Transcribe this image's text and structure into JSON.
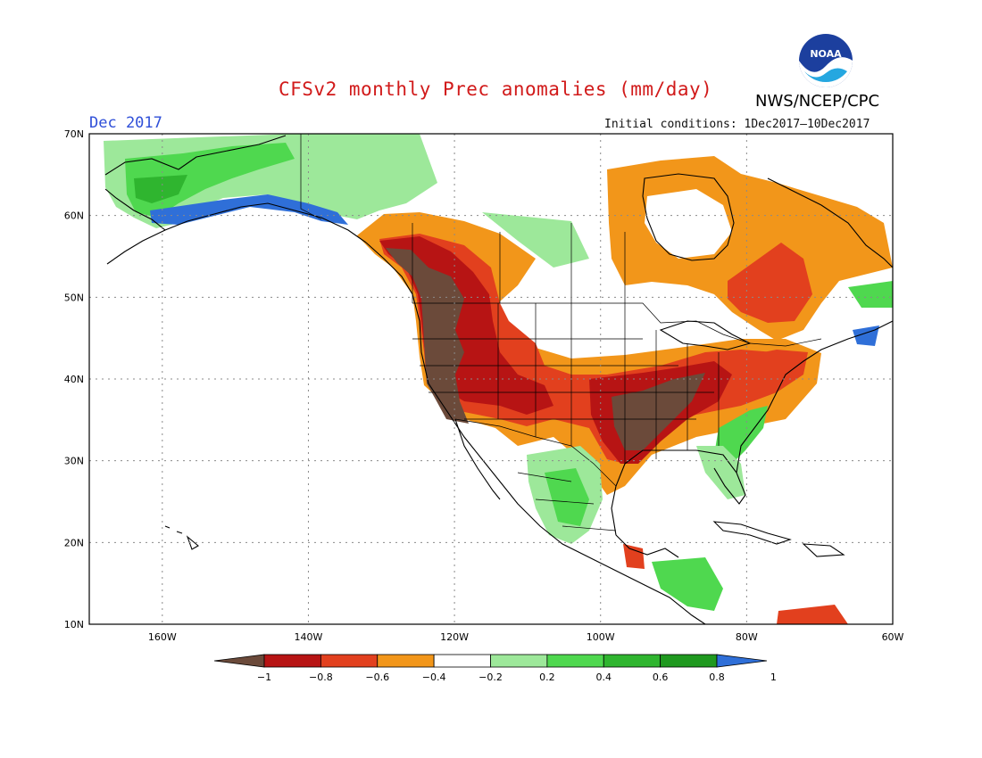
{
  "header": {
    "title": "CFSv2 monthly Prec anomalies (mm/day)",
    "agency": "NWS/NCEP/CPC",
    "month": "Dec 2017",
    "initial_conditions": "Initial conditions: 1Dec2017–10Dec2017",
    "logo_text": "NOAA"
  },
  "map": {
    "lat_labels": [
      "70N",
      "60N",
      "50N",
      "40N",
      "30N",
      "20N",
      "10N"
    ],
    "lon_labels": [
      "160W",
      "140W",
      "120W",
      "100W",
      "80W",
      "60W"
    ],
    "extent": {
      "lon": [
        -170,
        -60
      ],
      "lat": [
        10,
        70
      ]
    }
  },
  "colorbar": {
    "labels": [
      "−1",
      "−0.8",
      "−0.6",
      "−0.4",
      "−0.2",
      "0.2",
      "0.4",
      "0.6",
      "0.8",
      "1"
    ],
    "colors": [
      "#6b4a3a",
      "#b71414",
      "#e2401e",
      "#f2961a",
      "#ffffff",
      "#9de89a",
      "#4fd84f",
      "#2fb52f",
      "#1f991f",
      "#2f6fd8"
    ]
  },
  "palette": {
    "lt_minus1": "#6b4a3a",
    "m08": "#b71414",
    "m06": "#e2401e",
    "m04": "#f2961a",
    "p02": "#9de89a",
    "p04": "#4fd84f",
    "p06": "#2fb52f",
    "p08": "#1f991f",
    "gt1": "#2f6fd8"
  }
}
